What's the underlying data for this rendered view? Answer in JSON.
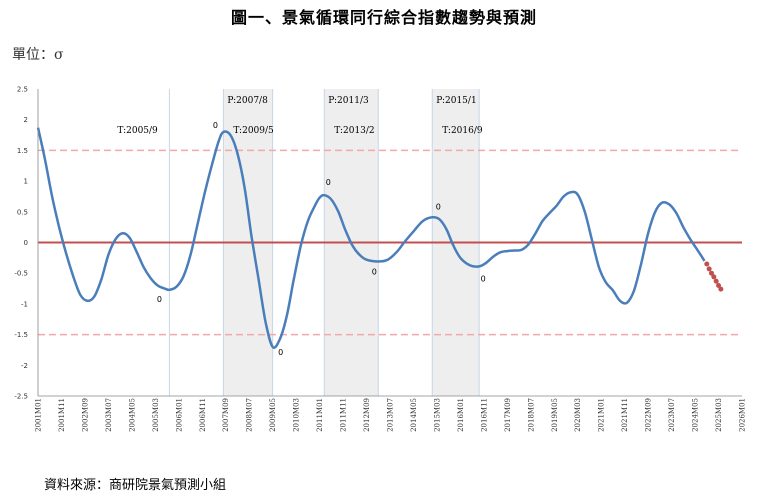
{
  "title": "圖一、景氣循環同行綜合指數趨勢與預測",
  "unit": "單位：σ",
  "source": "資料來源：商研院景氣預測小組",
  "colors": {
    "line": "#4a7ebb",
    "forecast": "#c0504d",
    "zero_line": "#c0504d",
    "band": "#f2a9a9",
    "shade": "#eeeeee",
    "vline": "#c5d5ea"
  },
  "chart_data": {
    "type": "line",
    "title": "圖一、景氣循環同行綜合指數趨勢與預測",
    "ylabel": "單位：σ",
    "xlabel": "",
    "ylim": [
      -2.5,
      2.5
    ],
    "yticks": [
      "2.5",
      "2",
      "1.5",
      "1",
      "0.5",
      "0",
      "-0.5",
      "-1",
      "-1.5",
      "-2",
      "-2.5"
    ],
    "xlim": [
      "2001M01",
      "2026M01"
    ],
    "x_tick_labels": [
      "2001M01",
      "2001M11",
      "2002M09",
      "2003M07",
      "2004M05",
      "2005M03",
      "2006M01",
      "2006M11",
      "2007M09",
      "2008M07",
      "2009M05",
      "2010M03",
      "2011M01",
      "2011M11",
      "2012M09",
      "2013M07",
      "2014M05",
      "2015M03",
      "2016M01",
      "2016M11",
      "2017M09",
      "2018M07",
      "2019M05",
      "2020M03",
      "2021M01",
      "2021M11",
      "2022M09",
      "2023M07",
      "2024M05",
      "2025M03",
      "2026M01"
    ],
    "reference_lines": [
      1.5,
      0,
      -1.5
    ],
    "contraction_periods": [
      {
        "peak": "P:2007/8",
        "trough": "T:2009/5",
        "start": "2007M08",
        "end": "2009M05"
      },
      {
        "peak": "P:2011/3",
        "trough": "T:2013/2",
        "start": "2011M03",
        "end": "2013M02"
      },
      {
        "peak": "P:2015/1",
        "trough": "T:2016/9",
        "start": "2015M01",
        "end": "2016M09"
      }
    ],
    "vertical_markers": [
      {
        "date": "2005M09",
        "label": "T:2005/9"
      }
    ],
    "series": [
      {
        "values": [
          [
            "2001M01",
            1.87
          ],
          [
            "2001M04",
            1.35
          ],
          [
            "2001M07",
            0.75
          ],
          [
            "2001M10",
            0.25
          ],
          [
            "2002M01",
            -0.18
          ],
          [
            "2002M04",
            -0.55
          ],
          [
            "2002M07",
            -0.85
          ],
          [
            "2002M10",
            -0.95
          ],
          [
            "2003M01",
            -0.88
          ],
          [
            "2003M04",
            -0.6
          ],
          [
            "2003M07",
            -0.2
          ],
          [
            "2003M10",
            0.05
          ],
          [
            "2004M01",
            0.15
          ],
          [
            "2004M04",
            0.08
          ],
          [
            "2004M07",
            -0.15
          ],
          [
            "2004M10",
            -0.4
          ],
          [
            "2005M01",
            -0.58
          ],
          [
            "2005M04",
            -0.7
          ],
          [
            "2005M07",
            -0.75
          ],
          [
            "2005M09",
            -0.77
          ],
          [
            "2005M12",
            -0.72
          ],
          [
            "2006M03",
            -0.55
          ],
          [
            "2006M06",
            -0.2
          ],
          [
            "2006M09",
            0.3
          ],
          [
            "2006M12",
            0.8
          ],
          [
            "2007M03",
            1.25
          ],
          [
            "2007M06",
            1.65
          ],
          [
            "2007M08",
            1.8
          ],
          [
            "2007M11",
            1.75
          ],
          [
            "2008M02",
            1.45
          ],
          [
            "2008M05",
            0.9
          ],
          [
            "2008M08",
            0.1
          ],
          [
            "2008M11",
            -0.6
          ],
          [
            "2009M02",
            -1.3
          ],
          [
            "2009M05",
            -1.7
          ],
          [
            "2009M08",
            -1.58
          ],
          [
            "2009M11",
            -1.2
          ],
          [
            "2010M02",
            -0.6
          ],
          [
            "2010M05",
            -0.05
          ],
          [
            "2010M08",
            0.35
          ],
          [
            "2010M11",
            0.6
          ],
          [
            "2011M01",
            0.73
          ],
          [
            "2011M03",
            0.77
          ],
          [
            "2011M06",
            0.7
          ],
          [
            "2011M09",
            0.5
          ],
          [
            "2011M12",
            0.2
          ],
          [
            "2012M03",
            -0.05
          ],
          [
            "2012M06",
            -0.2
          ],
          [
            "2012M09",
            -0.28
          ],
          [
            "2013M02",
            -0.31
          ],
          [
            "2013M06",
            -0.28
          ],
          [
            "2013M10",
            -0.15
          ],
          [
            "2014M01",
            0.0
          ],
          [
            "2014M05",
            0.18
          ],
          [
            "2014M09",
            0.35
          ],
          [
            "2015M01",
            0.41
          ],
          [
            "2015M04",
            0.38
          ],
          [
            "2015M07",
            0.22
          ],
          [
            "2015M10",
            -0.05
          ],
          [
            "2016M01",
            -0.25
          ],
          [
            "2016M05",
            -0.37
          ],
          [
            "2016M09",
            -0.39
          ],
          [
            "2016M12",
            -0.33
          ],
          [
            "2017M03",
            -0.23
          ],
          [
            "2017M06",
            -0.16
          ],
          [
            "2017M09",
            -0.14
          ],
          [
            "2017M12",
            -0.13
          ],
          [
            "2018M03",
            -0.12
          ],
          [
            "2018M06",
            -0.03
          ],
          [
            "2018M09",
            0.15
          ],
          [
            "2018M12",
            0.35
          ],
          [
            "2019M03",
            0.48
          ],
          [
            "2019M06",
            0.6
          ],
          [
            "2019M09",
            0.75
          ],
          [
            "2019M12",
            0.82
          ],
          [
            "2020M03",
            0.78
          ],
          [
            "2020M06",
            0.5
          ],
          [
            "2020M09",
            0.05
          ],
          [
            "2020M12",
            -0.4
          ],
          [
            "2021M03",
            -0.65
          ],
          [
            "2021M06",
            -0.78
          ],
          [
            "2021M09",
            -0.95
          ],
          [
            "2021M12",
            -0.98
          ],
          [
            "2022M03",
            -0.78
          ],
          [
            "2022M06",
            -0.35
          ],
          [
            "2022M09",
            0.15
          ],
          [
            "2022M12",
            0.5
          ],
          [
            "2023M03",
            0.65
          ],
          [
            "2023M06",
            0.62
          ],
          [
            "2023M09",
            0.48
          ],
          [
            "2023M12",
            0.25
          ],
          [
            "2024M03",
            0.05
          ],
          [
            "2024M06",
            -0.12
          ],
          [
            "2024M09",
            -0.3
          ]
        ]
      },
      {
        "values": [
          [
            "2024M10",
            -0.35
          ],
          [
            "2024M11",
            -0.43
          ],
          [
            "2024M12",
            -0.5
          ],
          [
            "2025M01",
            -0.56
          ],
          [
            "2025M02",
            -0.63
          ],
          [
            "2025M03",
            -0.7
          ],
          [
            "2025M04",
            -0.76
          ]
        ]
      }
    ],
    "annotations": [
      "0",
      "0",
      "0",
      "0",
      "0",
      "0",
      "0"
    ],
    "grid": false,
    "legend": "none"
  }
}
